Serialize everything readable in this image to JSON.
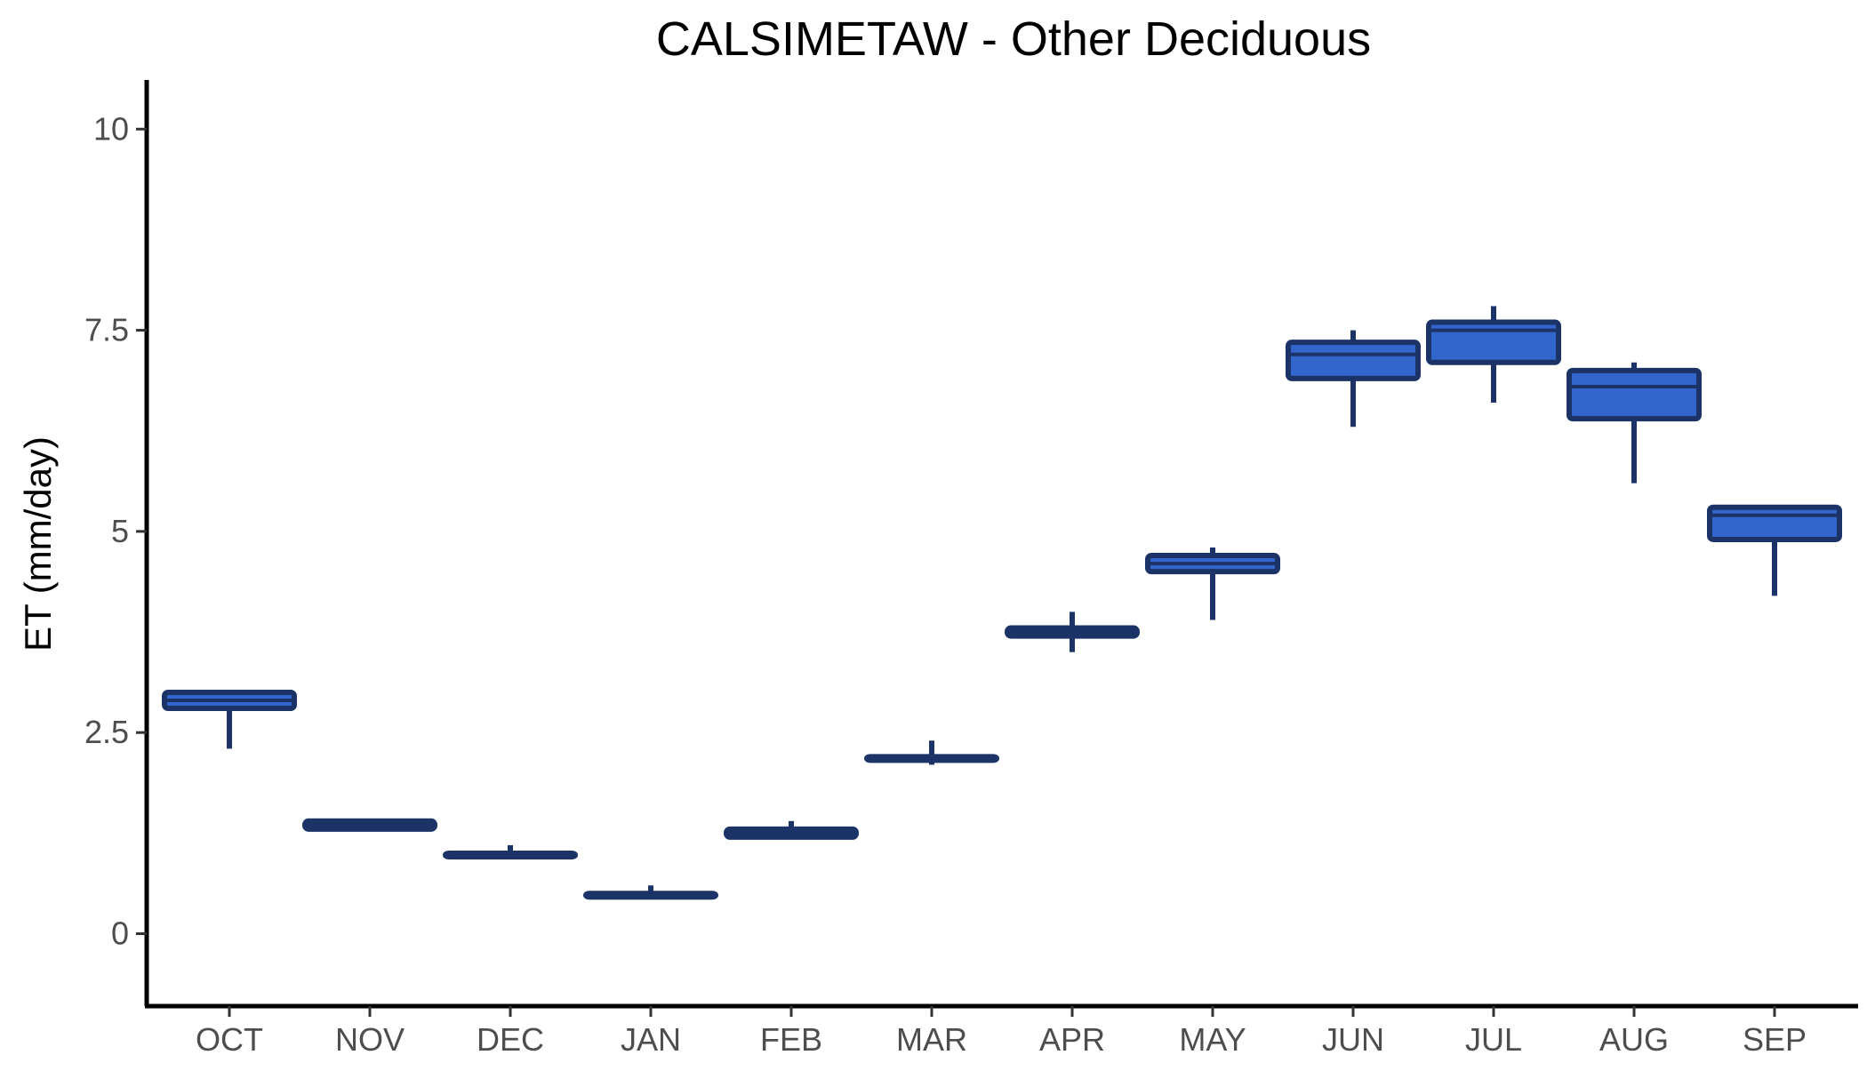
{
  "chart_data": {
    "type": "box",
    "title": "CALSIMETAW - Other Deciduous",
    "xlabel": "",
    "ylabel": "ET (mm/day)",
    "ylim": [
      -0.9,
      10.5
    ],
    "yticks": [
      0,
      2.5,
      5,
      7.5,
      10
    ],
    "ytick_labels": [
      "0",
      "2.5",
      "5",
      "7.5",
      "10"
    ],
    "categories": [
      "OCT",
      "NOV",
      "DEC",
      "JAN",
      "FEB",
      "MAR",
      "APR",
      "MAY",
      "JUN",
      "JUL",
      "AUG",
      "SEP"
    ],
    "boxes": [
      {
        "min": 2.3,
        "q1": 2.8,
        "median": 2.9,
        "q3": 3.0,
        "max": 3.0
      },
      {
        "min": 1.3,
        "q1": 1.3,
        "median": 1.35,
        "q3": 1.4,
        "max": 1.4
      },
      {
        "min": 0.98,
        "q1": 0.98,
        "median": 1.0,
        "q3": 1.0,
        "max": 1.1
      },
      {
        "min": 0.48,
        "q1": 0.48,
        "median": 0.5,
        "q3": 0.5,
        "max": 0.6
      },
      {
        "min": 1.2,
        "q1": 1.2,
        "median": 1.25,
        "q3": 1.3,
        "max": 1.4
      },
      {
        "min": 2.1,
        "q1": 2.18,
        "median": 2.2,
        "q3": 2.2,
        "max": 2.4
      },
      {
        "min": 3.5,
        "q1": 3.7,
        "median": 3.75,
        "q3": 3.8,
        "max": 4.0
      },
      {
        "min": 3.9,
        "q1": 4.5,
        "median": 4.6,
        "q3": 4.7,
        "max": 4.8
      },
      {
        "min": 6.3,
        "q1": 6.9,
        "median": 7.2,
        "q3": 7.35,
        "max": 7.5
      },
      {
        "min": 6.6,
        "q1": 7.1,
        "median": 7.5,
        "q3": 7.6,
        "max": 7.8
      },
      {
        "min": 5.6,
        "q1": 6.4,
        "median": 6.8,
        "q3": 7.0,
        "max": 7.1
      },
      {
        "min": 4.2,
        "q1": 4.9,
        "median": 5.2,
        "q3": 5.3,
        "max": 5.3
      }
    ],
    "fill_color": "#3366cc",
    "line_color": "#1b3366",
    "grid": false,
    "legend": "none"
  }
}
